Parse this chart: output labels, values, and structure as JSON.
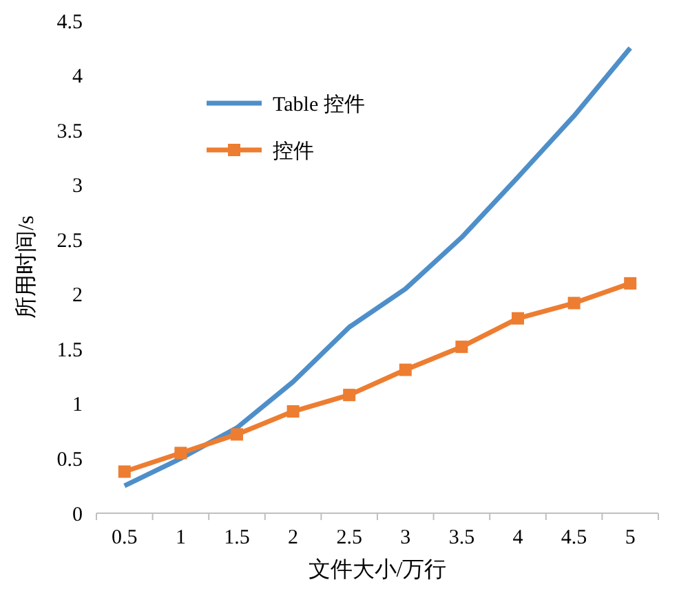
{
  "chart_data": {
    "type": "line",
    "xlabel": "文件大小/万行",
    "ylabel": "所用时间/s",
    "categories": [
      "0.5",
      "1",
      "1.5",
      "2",
      "2.5",
      "3",
      "3.5",
      "4",
      "4.5",
      "5"
    ],
    "ylim": [
      0,
      4.5
    ],
    "yticks": [
      0,
      0.5,
      1,
      1.5,
      2,
      2.5,
      3,
      3.5,
      4,
      4.5
    ],
    "grid": false,
    "legend": "top left",
    "series": [
      {
        "name": "Table 控件",
        "color": "#4e8fc9",
        "marker": "none",
        "values": [
          0.25,
          0.5,
          0.78,
          1.2,
          1.7,
          2.05,
          2.52,
          3.07,
          3.63,
          4.25
        ]
      },
      {
        "name": "控件",
        "color": "#ed7d31",
        "marker": "square",
        "values": [
          0.38,
          0.55,
          0.72,
          0.93,
          1.08,
          1.31,
          1.52,
          1.78,
          1.92,
          2.1
        ]
      }
    ]
  }
}
